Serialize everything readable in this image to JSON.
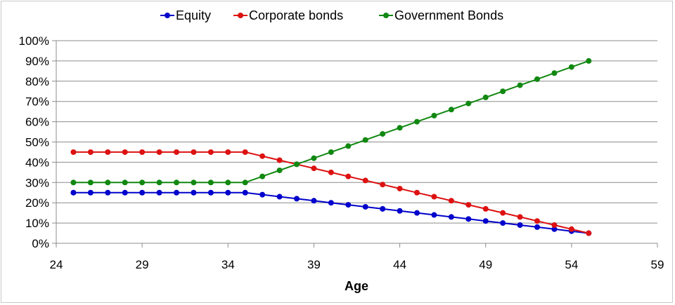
{
  "chart_data": {
    "type": "line",
    "title": "",
    "xlabel": "Age",
    "ylabel": "",
    "xlim": [
      24,
      59
    ],
    "ylim": [
      0,
      100
    ],
    "x_ticks": [
      24,
      29,
      34,
      39,
      44,
      49,
      54,
      59
    ],
    "y_ticks": [
      "0%",
      "10%",
      "20%",
      "30%",
      "40%",
      "50%",
      "60%",
      "70%",
      "80%",
      "90%",
      "100%"
    ],
    "grid": "horizontal",
    "legend_position": "top",
    "x": [
      25,
      26,
      27,
      28,
      29,
      30,
      31,
      32,
      33,
      34,
      35,
      36,
      37,
      38,
      39,
      40,
      41,
      42,
      43,
      44,
      45,
      46,
      47,
      48,
      49,
      50,
      51,
      52,
      53,
      54,
      55
    ],
    "series": [
      {
        "name": "Equity",
        "color": "#0000cc",
        "values": [
          25,
          25,
          25,
          25,
          25,
          25,
          25,
          25,
          25,
          25,
          25,
          24,
          23,
          22,
          21,
          20,
          19,
          18,
          17,
          16,
          15,
          14,
          13,
          12,
          11,
          10,
          9,
          8,
          7,
          6,
          5
        ]
      },
      {
        "name": "Corporate bonds",
        "color": "#dd1111",
        "values": [
          45,
          45,
          45,
          45,
          45,
          45,
          45,
          45,
          45,
          45,
          45,
          43,
          41,
          39,
          37,
          35,
          33,
          31,
          29,
          27,
          25,
          23,
          21,
          19,
          17,
          15,
          13,
          11,
          9,
          7,
          5
        ]
      },
      {
        "name": "Government Bonds",
        "color": "#118811",
        "values": [
          30,
          30,
          30,
          30,
          30,
          30,
          30,
          30,
          30,
          30,
          30,
          33,
          36,
          39,
          42,
          45,
          48,
          51,
          54,
          57,
          60,
          63,
          66,
          69,
          72,
          75,
          78,
          81,
          84,
          87,
          90
        ]
      }
    ]
  }
}
